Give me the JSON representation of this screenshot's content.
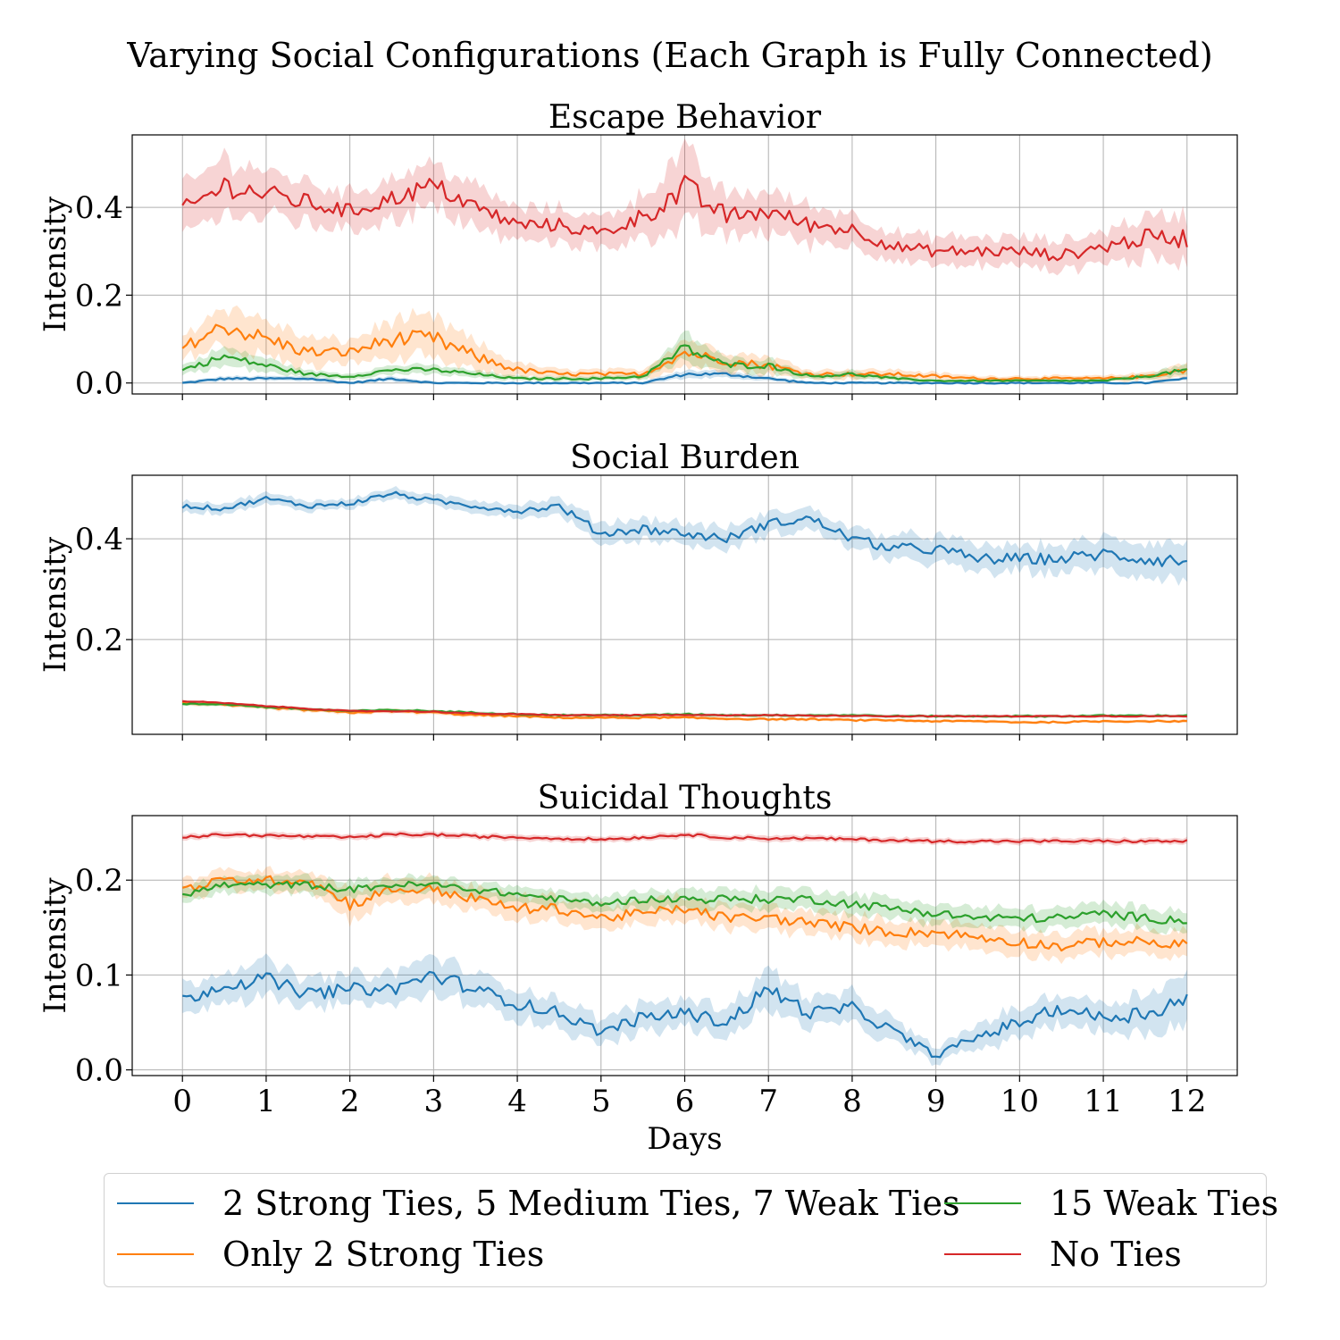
{
  "figure": {
    "title": "Varying Social Configurations (Each Graph is Fully Connected)",
    "xlabel": "Days"
  },
  "legend": {
    "items": [
      {
        "label": "2 Strong Ties, 5 Medium Ties, 7 Weak Ties",
        "color": "#1f77b4"
      },
      {
        "label": "Only 2 Strong Ties",
        "color": "#ff7f0e"
      },
      {
        "label": "15 Weak Ties",
        "color": "#2ca02c"
      },
      {
        "label": "No Ties",
        "color": "#d62728"
      }
    ]
  },
  "chart_data": [
    {
      "type": "line",
      "title": "Escape Behavior",
      "xlabel": "",
      "ylabel": "Intensity",
      "xlim": [
        -0.6,
        12.6
      ],
      "ylim": [
        -0.025,
        0.565
      ],
      "xticks": [
        0,
        1,
        2,
        3,
        4,
        5,
        6,
        7,
        8,
        9,
        10,
        11,
        12
      ],
      "yticks": [
        0.0,
        0.2,
        0.4
      ],
      "ytick_labels": [
        "0.0",
        "0.2",
        "0.4"
      ],
      "grid": true,
      "x": [
        0,
        0.5,
        1,
        1.5,
        2,
        2.5,
        3,
        3.5,
        4,
        4.5,
        5,
        5.5,
        6,
        6.5,
        7,
        7.5,
        8,
        8.5,
        9,
        9.5,
        10,
        10.5,
        11,
        11.5,
        12
      ],
      "series": [
        {
          "name": "2 Strong Ties, 5 Medium Ties, 7 Weak Ties",
          "color": "#1f77b4",
          "values": [
            0.0,
            0.01,
            0.01,
            0.01,
            0.0,
            0.01,
            0.0,
            0.0,
            0.0,
            0.0,
            0.0,
            0.0,
            0.02,
            0.02,
            0.01,
            0.0,
            0.0,
            0.0,
            0.0,
            0.0,
            0.0,
            0.0,
            0.0,
            0.0,
            0.01
          ],
          "band": [
            0.003,
            0.005,
            0.005,
            0.005,
            0.003,
            0.005,
            0.003,
            0.003,
            0.003,
            0.003,
            0.003,
            0.003,
            0.008,
            0.008,
            0.005,
            0.003,
            0.003,
            0.003,
            0.003,
            0.003,
            0.003,
            0.003,
            0.003,
            0.003,
            0.004
          ]
        },
        {
          "name": "Only 2 Strong Ties",
          "color": "#ff7f0e",
          "values": [
            0.08,
            0.13,
            0.1,
            0.07,
            0.07,
            0.1,
            0.1,
            0.06,
            0.03,
            0.02,
            0.02,
            0.02,
            0.07,
            0.05,
            0.04,
            0.02,
            0.02,
            0.02,
            0.015,
            0.01,
            0.01,
            0.01,
            0.01,
            0.015,
            0.03
          ],
          "band": [
            0.025,
            0.045,
            0.04,
            0.03,
            0.025,
            0.04,
            0.045,
            0.03,
            0.015,
            0.01,
            0.01,
            0.01,
            0.03,
            0.02,
            0.02,
            0.01,
            0.01,
            0.01,
            0.008,
            0.006,
            0.006,
            0.006,
            0.006,
            0.008,
            0.015
          ]
        },
        {
          "name": "15 Weak Ties",
          "color": "#2ca02c",
          "values": [
            0.03,
            0.06,
            0.04,
            0.02,
            0.015,
            0.03,
            0.03,
            0.02,
            0.01,
            0.01,
            0.01,
            0.015,
            0.08,
            0.04,
            0.04,
            0.015,
            0.02,
            0.01,
            0.005,
            0.005,
            0.005,
            0.005,
            0.005,
            0.015,
            0.03
          ],
          "band": [
            0.01,
            0.02,
            0.015,
            0.008,
            0.006,
            0.01,
            0.01,
            0.008,
            0.005,
            0.005,
            0.005,
            0.006,
            0.03,
            0.015,
            0.015,
            0.006,
            0.008,
            0.005,
            0.003,
            0.003,
            0.003,
            0.003,
            0.003,
            0.006,
            0.012
          ]
        },
        {
          "name": "No Ties",
          "color": "#d62728",
          "values": [
            0.39,
            0.45,
            0.43,
            0.41,
            0.39,
            0.42,
            0.45,
            0.4,
            0.36,
            0.36,
            0.34,
            0.38,
            0.44,
            0.38,
            0.39,
            0.36,
            0.35,
            0.31,
            0.3,
            0.3,
            0.3,
            0.29,
            0.31,
            0.33,
            0.33
          ],
          "band": [
            0.05,
            0.06,
            0.05,
            0.045,
            0.04,
            0.045,
            0.05,
            0.045,
            0.035,
            0.035,
            0.035,
            0.045,
            0.08,
            0.045,
            0.045,
            0.04,
            0.035,
            0.03,
            0.03,
            0.03,
            0.03,
            0.03,
            0.035,
            0.045,
            0.05
          ]
        }
      ]
    },
    {
      "type": "line",
      "title": "Social Burden",
      "xlabel": "",
      "ylabel": "Intensity",
      "xlim": [
        -0.6,
        12.6
      ],
      "ylim": [
        0.012,
        0.526
      ],
      "xticks": [
        0,
        1,
        2,
        3,
        4,
        5,
        6,
        7,
        8,
        9,
        10,
        11,
        12
      ],
      "yticks": [
        0.2,
        0.4
      ],
      "ytick_labels": [
        "0.2",
        "0.4"
      ],
      "grid": true,
      "x": [
        0,
        0.5,
        1,
        1.5,
        2,
        2.5,
        3,
        3.5,
        4,
        4.5,
        5,
        5.5,
        6,
        6.5,
        7,
        7.5,
        8,
        8.5,
        9,
        9.5,
        10,
        10.5,
        11,
        11.5,
        12
      ],
      "series": [
        {
          "name": "2 Strong Ties, 5 Medium Ties, 7 Weak Ties",
          "color": "#1f77b4",
          "values": [
            0.465,
            0.46,
            0.48,
            0.465,
            0.47,
            0.49,
            0.475,
            0.465,
            0.455,
            0.465,
            0.41,
            0.42,
            0.41,
            0.4,
            0.43,
            0.44,
            0.4,
            0.38,
            0.38,
            0.36,
            0.36,
            0.36,
            0.37,
            0.36,
            0.355
          ],
          "band": [
            0.01,
            0.01,
            0.01,
            0.01,
            0.01,
            0.01,
            0.01,
            0.012,
            0.012,
            0.015,
            0.02,
            0.02,
            0.02,
            0.02,
            0.02,
            0.02,
            0.02,
            0.025,
            0.025,
            0.025,
            0.025,
            0.025,
            0.03,
            0.03,
            0.035
          ]
        },
        {
          "name": "Only 2 Strong Ties",
          "color": "#ff7f0e",
          "values": [
            0.075,
            0.07,
            0.065,
            0.06,
            0.055,
            0.058,
            0.055,
            0.05,
            0.048,
            0.045,
            0.045,
            0.045,
            0.045,
            0.043,
            0.042,
            0.042,
            0.04,
            0.04,
            0.038,
            0.038,
            0.036,
            0.036,
            0.038,
            0.038,
            0.038
          ],
          "band": [
            0.004,
            0.004,
            0.004,
            0.004,
            0.004,
            0.004,
            0.004,
            0.004,
            0.003,
            0.003,
            0.003,
            0.003,
            0.003,
            0.003,
            0.003,
            0.003,
            0.003,
            0.003,
            0.003,
            0.003,
            0.003,
            0.003,
            0.003,
            0.003,
            0.003
          ]
        },
        {
          "name": "15 Weak Ties",
          "color": "#2ca02c",
          "values": [
            0.072,
            0.072,
            0.066,
            0.062,
            0.058,
            0.06,
            0.058,
            0.055,
            0.052,
            0.05,
            0.05,
            0.05,
            0.052,
            0.05,
            0.05,
            0.05,
            0.05,
            0.048,
            0.048,
            0.048,
            0.048,
            0.048,
            0.049,
            0.049,
            0.049
          ],
          "band": [
            0.003,
            0.003,
            0.003,
            0.003,
            0.003,
            0.003,
            0.003,
            0.003,
            0.003,
            0.003,
            0.003,
            0.003,
            0.003,
            0.003,
            0.003,
            0.003,
            0.003,
            0.003,
            0.003,
            0.003,
            0.003,
            0.003,
            0.003,
            0.003,
            0.003
          ]
        },
        {
          "name": "No Ties",
          "color": "#d62728",
          "values": [
            0.078,
            0.074,
            0.068,
            0.063,
            0.058,
            0.058,
            0.057,
            0.053,
            0.052,
            0.05,
            0.05,
            0.05,
            0.05,
            0.05,
            0.05,
            0.049,
            0.049,
            0.048,
            0.048,
            0.048,
            0.048,
            0.048,
            0.048,
            0.048,
            0.048
          ],
          "band": [
            0.002,
            0.002,
            0.002,
            0.002,
            0.002,
            0.002,
            0.002,
            0.002,
            0.002,
            0.002,
            0.002,
            0.002,
            0.002,
            0.002,
            0.002,
            0.002,
            0.002,
            0.002,
            0.002,
            0.002,
            0.002,
            0.002,
            0.002,
            0.002,
            0.002
          ]
        }
      ]
    },
    {
      "type": "line",
      "title": "Suicidal Thoughts",
      "xlabel": "Days",
      "ylabel": "Intensity",
      "xlim": [
        -0.6,
        12.6
      ],
      "ylim": [
        -0.006,
        0.268
      ],
      "xticks": [
        0,
        1,
        2,
        3,
        4,
        5,
        6,
        7,
        8,
        9,
        10,
        11,
        12
      ],
      "yticks": [
        0.0,
        0.1,
        0.2
      ],
      "ytick_labels": [
        "0.0",
        "0.1",
        "0.2"
      ],
      "grid": true,
      "x": [
        0,
        0.5,
        1,
        1.5,
        2,
        2.5,
        3,
        3.5,
        4,
        4.5,
        5,
        5.5,
        6,
        6.5,
        7,
        7.5,
        8,
        8.5,
        9,
        9.5,
        10,
        10.5,
        11,
        11.5,
        12
      ],
      "series": [
        {
          "name": "2 Strong Ties, 5 Medium Ties, 7 Weak Ties",
          "color": "#1f77b4",
          "values": [
            0.073,
            0.09,
            0.095,
            0.08,
            0.085,
            0.085,
            0.1,
            0.085,
            0.07,
            0.06,
            0.04,
            0.055,
            0.06,
            0.05,
            0.085,
            0.06,
            0.065,
            0.04,
            0.015,
            0.035,
            0.05,
            0.065,
            0.055,
            0.06,
            0.075
          ],
          "band": [
            0.015,
            0.015,
            0.018,
            0.015,
            0.015,
            0.015,
            0.02,
            0.015,
            0.015,
            0.015,
            0.012,
            0.015,
            0.015,
            0.015,
            0.02,
            0.015,
            0.015,
            0.012,
            0.008,
            0.012,
            0.015,
            0.015,
            0.015,
            0.02,
            0.025
          ]
        },
        {
          "name": "Only 2 Strong Ties",
          "color": "#ff7f0e",
          "values": [
            0.19,
            0.2,
            0.2,
            0.2,
            0.175,
            0.19,
            0.19,
            0.18,
            0.17,
            0.17,
            0.16,
            0.165,
            0.17,
            0.16,
            0.16,
            0.155,
            0.15,
            0.145,
            0.145,
            0.14,
            0.135,
            0.13,
            0.135,
            0.135,
            0.13
          ],
          "band": [
            0.01,
            0.01,
            0.01,
            0.01,
            0.015,
            0.012,
            0.012,
            0.012,
            0.012,
            0.012,
            0.012,
            0.012,
            0.012,
            0.012,
            0.012,
            0.012,
            0.012,
            0.012,
            0.012,
            0.012,
            0.012,
            0.012,
            0.012,
            0.012,
            0.015
          ]
        },
        {
          "name": "15 Weak Ties",
          "color": "#2ca02c",
          "values": [
            0.185,
            0.195,
            0.195,
            0.195,
            0.19,
            0.195,
            0.195,
            0.19,
            0.185,
            0.18,
            0.175,
            0.18,
            0.18,
            0.18,
            0.18,
            0.18,
            0.175,
            0.17,
            0.165,
            0.16,
            0.16,
            0.16,
            0.165,
            0.16,
            0.158
          ],
          "band": [
            0.008,
            0.008,
            0.008,
            0.008,
            0.008,
            0.008,
            0.008,
            0.008,
            0.008,
            0.008,
            0.008,
            0.008,
            0.01,
            0.01,
            0.01,
            0.01,
            0.01,
            0.01,
            0.01,
            0.01,
            0.01,
            0.01,
            0.01,
            0.01,
            0.012
          ]
        },
        {
          "name": "No Ties",
          "color": "#d62728",
          "values": [
            0.245,
            0.248,
            0.247,
            0.246,
            0.245,
            0.248,
            0.248,
            0.246,
            0.245,
            0.244,
            0.243,
            0.245,
            0.248,
            0.245,
            0.244,
            0.244,
            0.243,
            0.242,
            0.241,
            0.241,
            0.241,
            0.241,
            0.241,
            0.241,
            0.241
          ],
          "band": [
            0.003,
            0.003,
            0.003,
            0.003,
            0.003,
            0.003,
            0.003,
            0.003,
            0.003,
            0.003,
            0.003,
            0.003,
            0.003,
            0.003,
            0.003,
            0.003,
            0.003,
            0.003,
            0.003,
            0.003,
            0.003,
            0.003,
            0.003,
            0.003,
            0.003
          ]
        }
      ]
    }
  ]
}
